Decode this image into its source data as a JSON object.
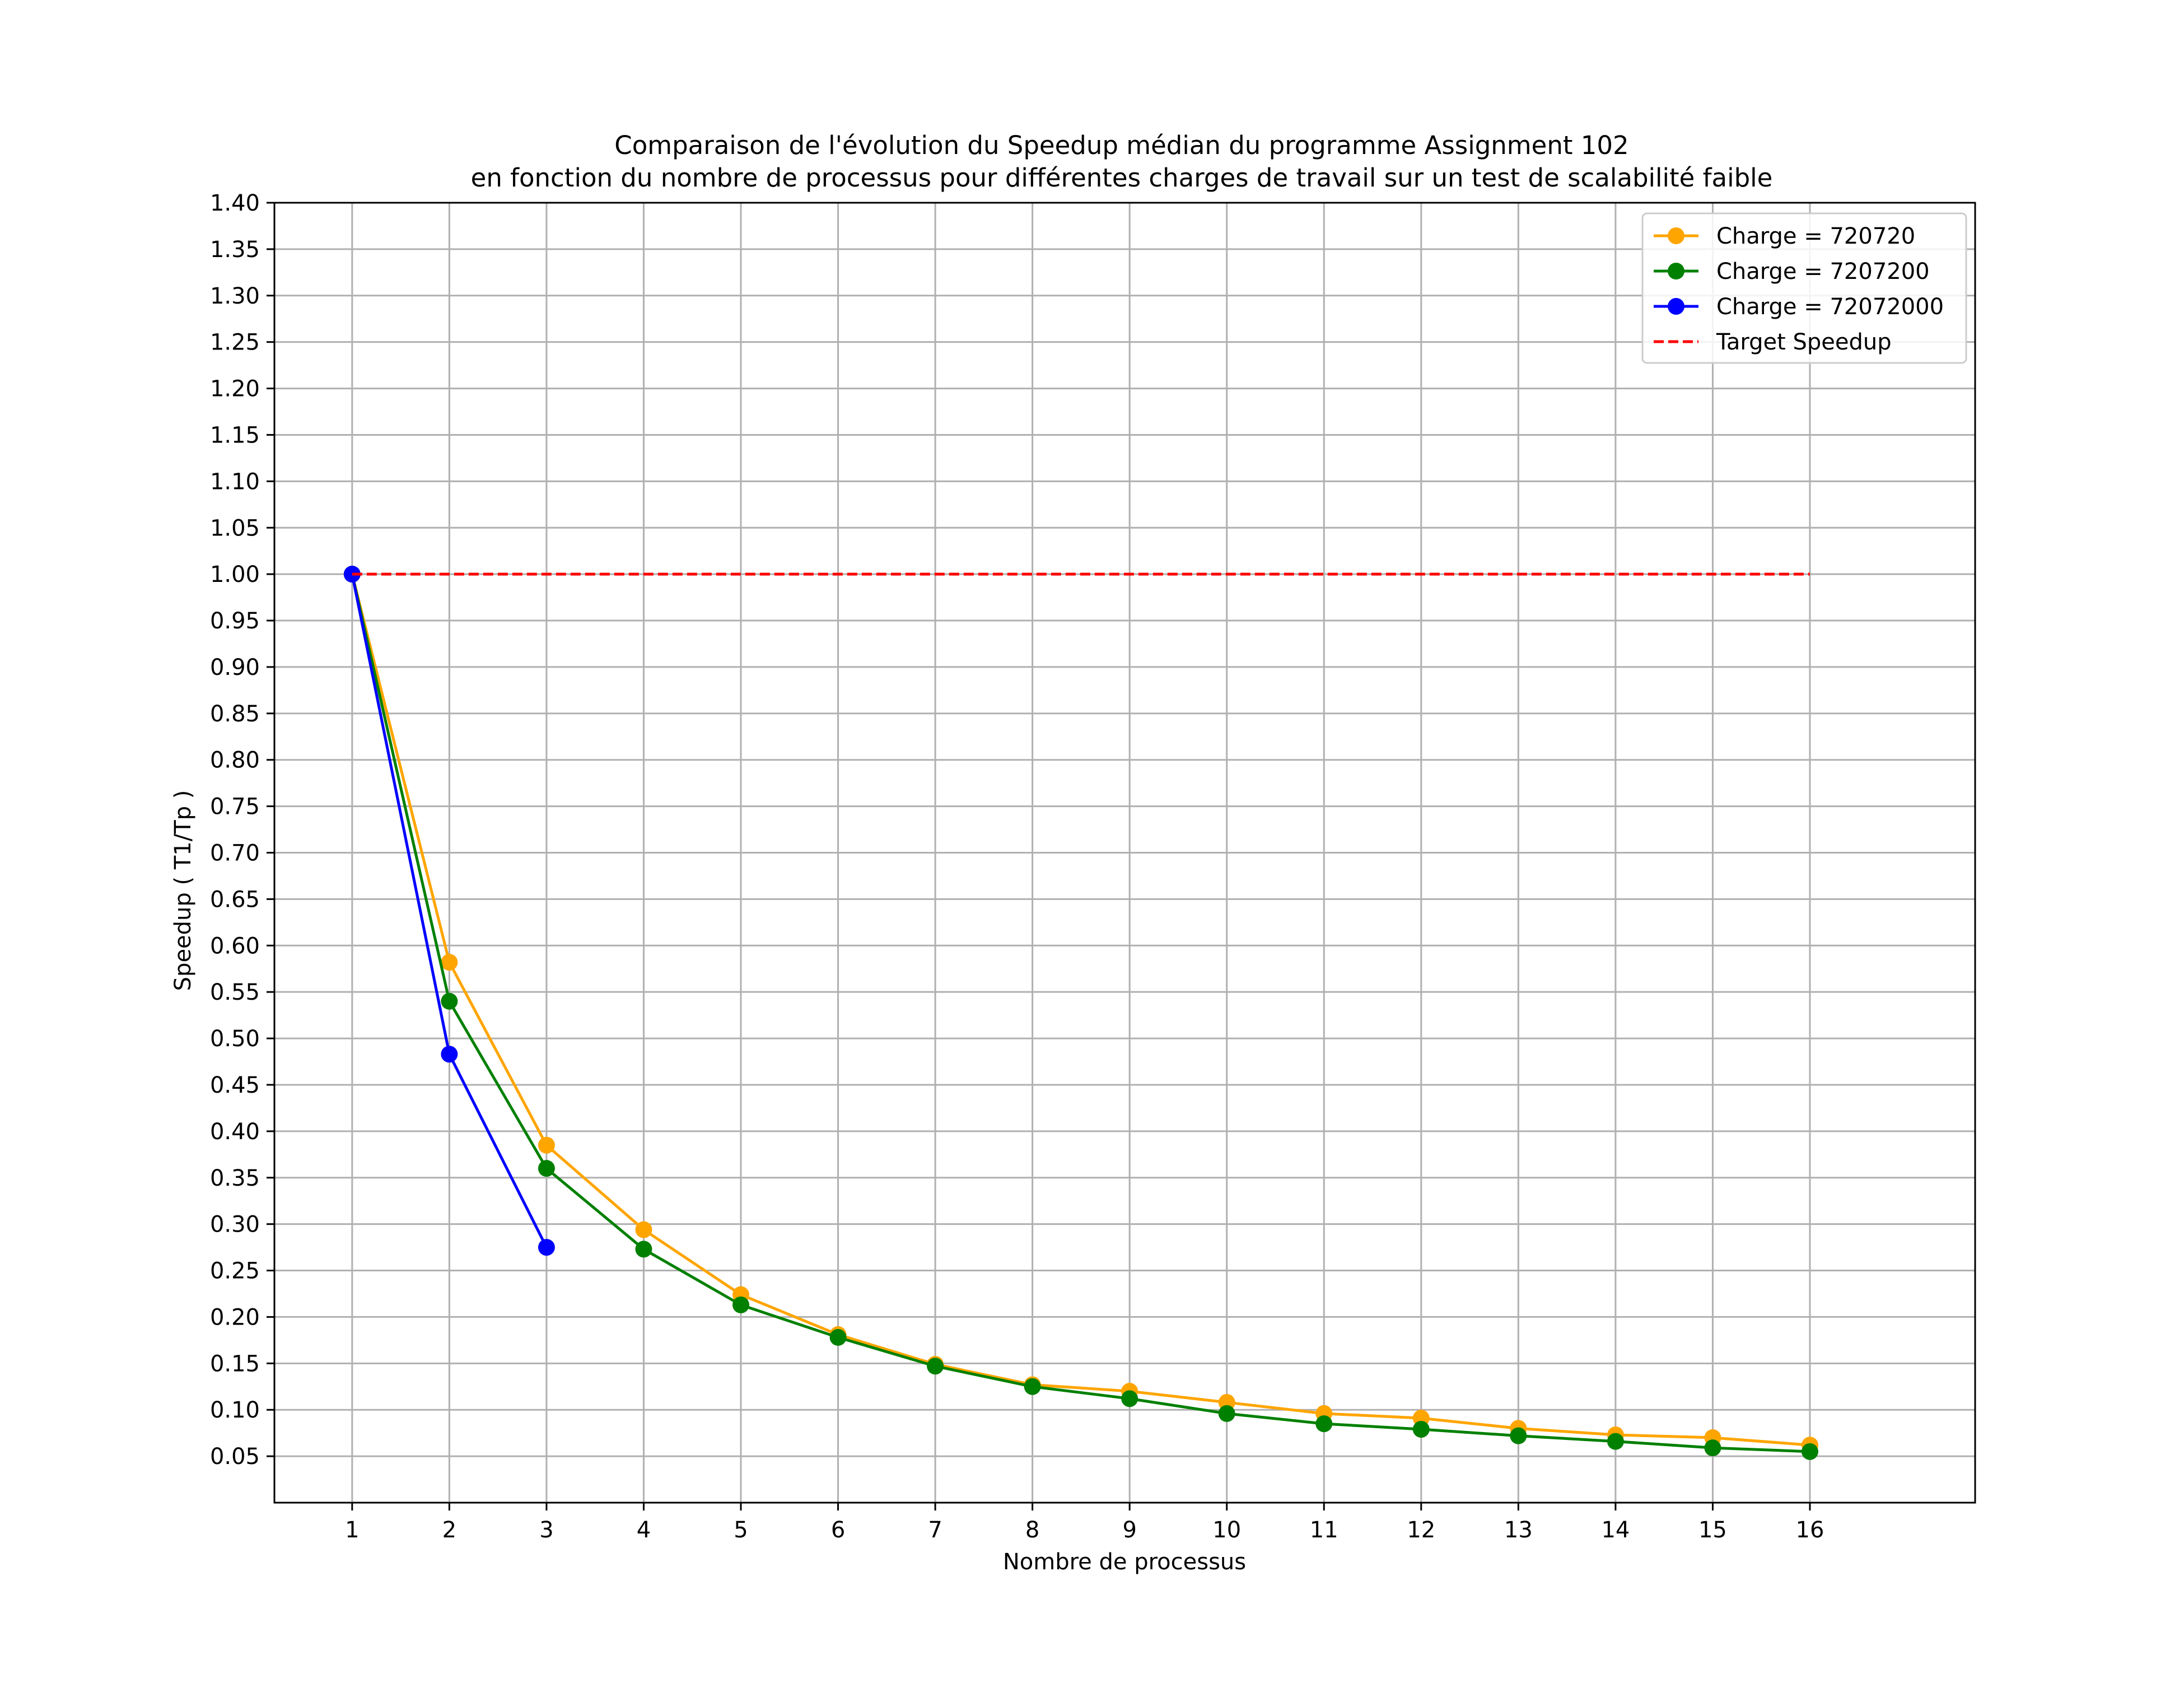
{
  "chart_data": {
    "type": "line",
    "title": "Comparaison de l'évolution du Speedup médian du programme Assignment 102",
    "subtitle": "en fonction du nombre de processus pour différentes charges de travail sur un test de scalabilité faible",
    "xlabel": "Nombre de processus",
    "ylabel": "Speedup ( T1/Tp )",
    "x": [
      1,
      2,
      3,
      4,
      5,
      6,
      7,
      8,
      9,
      10,
      11,
      12,
      13,
      14,
      15,
      16
    ],
    "xlim": [
      0.2,
      17.7
    ],
    "ylim": [
      0.0,
      1.4
    ],
    "yticks": [
      "0.05",
      "0.10",
      "0.15",
      "0.20",
      "0.25",
      "0.30",
      "0.35",
      "0.40",
      "0.45",
      "0.50",
      "0.55",
      "0.60",
      "0.65",
      "0.70",
      "0.75",
      "0.80",
      "0.85",
      "0.90",
      "0.95",
      "1.00",
      "1.05",
      "1.10",
      "1.15",
      "1.20",
      "1.25",
      "1.30",
      "1.35",
      "1.40"
    ],
    "xticks": [
      "1",
      "2",
      "3",
      "4",
      "5",
      "6",
      "7",
      "8",
      "9",
      "10",
      "11",
      "12",
      "13",
      "14",
      "15",
      "16"
    ],
    "grid": true,
    "legend_position": "top-right",
    "series": [
      {
        "name": "Charge = 720720",
        "color": "#ffa500",
        "style": "solid-marker",
        "x": [
          1,
          2,
          3,
          4,
          5,
          6,
          7,
          8,
          9,
          10,
          11,
          12,
          13,
          14,
          15,
          16
        ],
        "y": [
          1.0,
          0.582,
          0.385,
          0.294,
          0.224,
          0.181,
          0.149,
          0.127,
          0.12,
          0.108,
          0.096,
          0.091,
          0.08,
          0.073,
          0.07,
          0.062
        ]
      },
      {
        "name": "Charge = 7207200",
        "color": "#008000",
        "style": "solid-marker",
        "x": [
          1,
          2,
          3,
          4,
          5,
          6,
          7,
          8,
          9,
          10,
          11,
          12,
          13,
          14,
          15,
          16
        ],
        "y": [
          1.0,
          0.54,
          0.36,
          0.273,
          0.213,
          0.178,
          0.147,
          0.125,
          0.112,
          0.096,
          0.085,
          0.079,
          0.072,
          0.066,
          0.059,
          0.055
        ]
      },
      {
        "name": "Charge = 72072000",
        "color": "#0000ff",
        "style": "solid-marker",
        "x": [
          1,
          2,
          3
        ],
        "y": [
          1.0,
          0.483,
          0.275
        ]
      },
      {
        "name": "Target Speedup",
        "color": "#ff0000",
        "style": "dashed",
        "x": [
          1,
          16
        ],
        "y": [
          1.0,
          1.0
        ]
      }
    ]
  }
}
